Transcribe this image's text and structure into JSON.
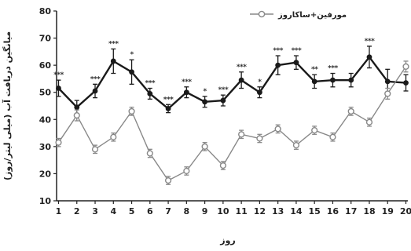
{
  "chart_data": {
    "type": "line",
    "title": "",
    "xlabel": "روز",
    "ylabel": "میانگین دریافت آب (میلی لیتر/روز)",
    "xlim": [
      1,
      20
    ],
    "ylim": [
      10,
      80
    ],
    "yticks": [
      10,
      20,
      30,
      40,
      50,
      60,
      70,
      80
    ],
    "x": [
      1,
      2,
      3,
      4,
      5,
      6,
      7,
      8,
      9,
      10,
      11,
      12,
      13,
      14,
      15,
      16,
      17,
      18,
      19,
      20
    ],
    "grid": false,
    "legend_position": "top-right",
    "series": [
      {
        "name": "",
        "marker": "filled-circle",
        "color": "#1a1a1a",
        "values": [
          51.5,
          44.5,
          50.5,
          61.5,
          57.5,
          49.5,
          44,
          50,
          46.5,
          47,
          54.5,
          50,
          60,
          61,
          54,
          54.5,
          54.5,
          63,
          54,
          53.5
        ],
        "errors": [
          3,
          2.5,
          2.5,
          4.5,
          4.5,
          2,
          1.5,
          2,
          2,
          2,
          3,
          2,
          3.5,
          2.5,
          2.5,
          2.5,
          2.5,
          4,
          4.5,
          3
        ]
      },
      {
        "name": "مورفین+ساکاروز",
        "marker": "open-circle",
        "color": "#888888",
        "values": [
          31.5,
          41.5,
          29,
          33.5,
          43,
          27.5,
          17.5,
          21,
          30,
          23,
          34.5,
          33,
          36.5,
          30.5,
          36,
          33.5,
          43,
          39,
          49.5,
          59.5
        ],
        "errors": [
          1.5,
          2,
          1.5,
          1.5,
          1.5,
          1.5,
          1.5,
          1.5,
          1.5,
          1.5,
          1.5,
          1.5,
          1.5,
          1.5,
          1.5,
          1.5,
          1.5,
          1.5,
          2,
          2
        ]
      }
    ],
    "significance_labels": [
      "***",
      "",
      "***",
      "***",
      "*",
      "***",
      "***",
      "***",
      "*",
      "***",
      "***",
      "*",
      "***",
      "***",
      "**",
      "***",
      "",
      "***",
      "",
      ""
    ]
  }
}
